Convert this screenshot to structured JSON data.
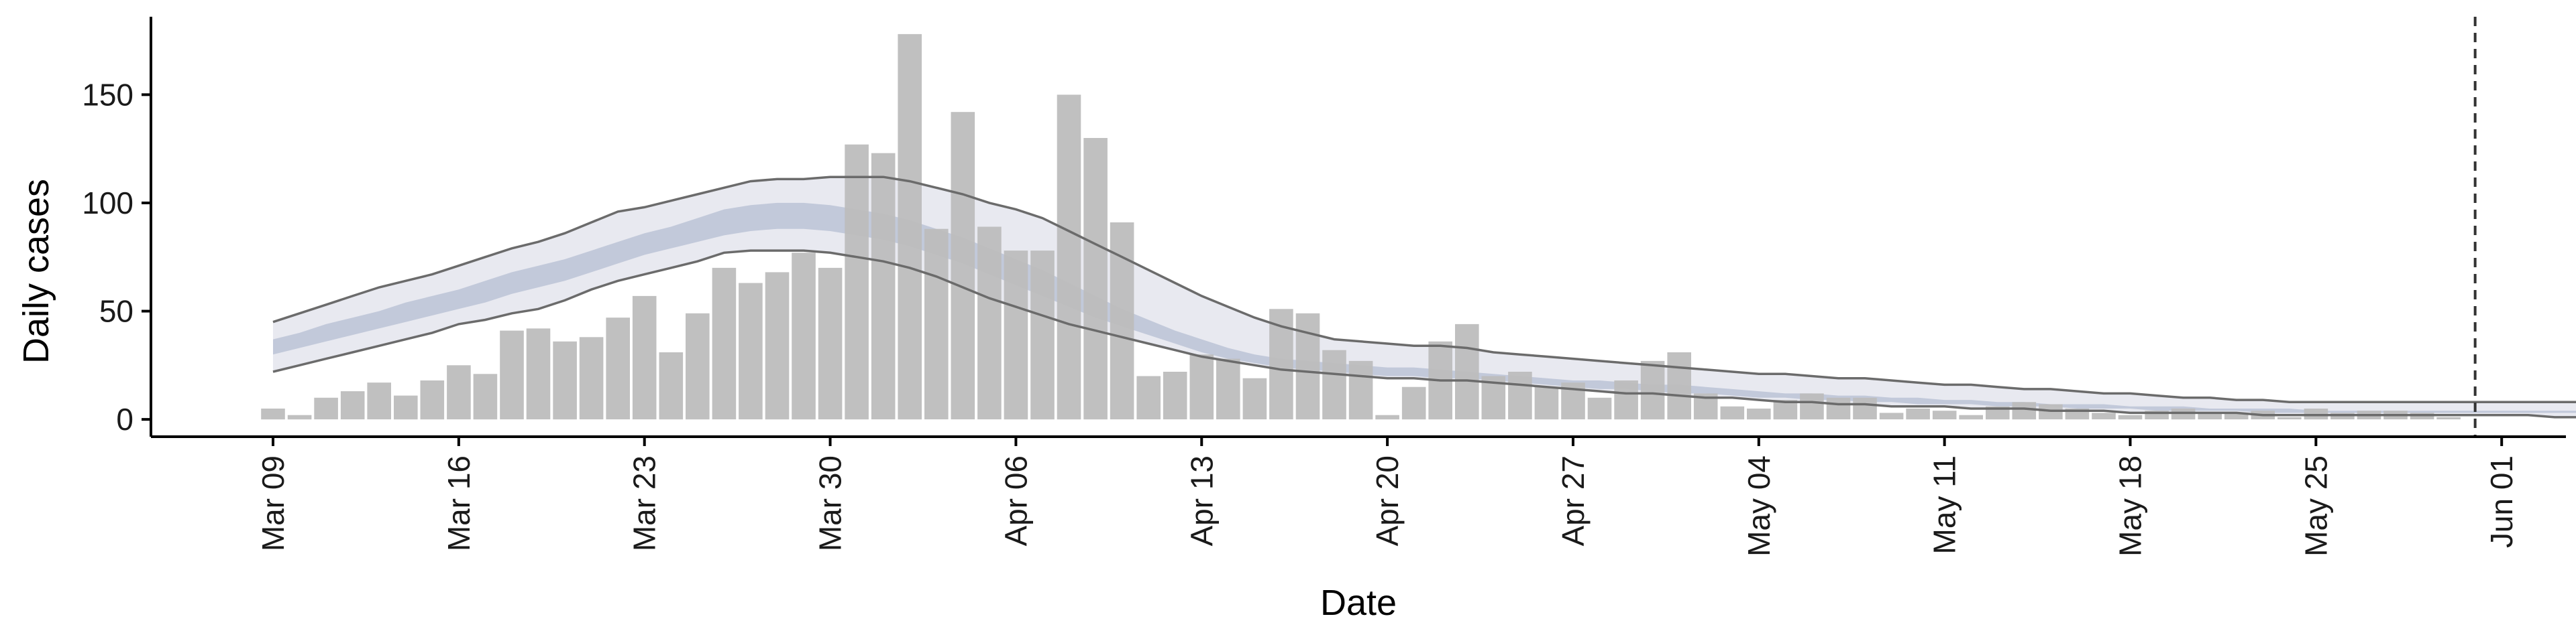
{
  "chart_data": {
    "type": "bar",
    "xlabel": "Date",
    "ylabel": "Daily cases",
    "x_tick_labels": [
      "Mar 09",
      "Mar 16",
      "Mar 23",
      "Mar 30",
      "Apr 06",
      "Apr 13",
      "Apr 20",
      "Apr 27",
      "May 04",
      "May 11",
      "May 18",
      "May 25",
      "Jun 01"
    ],
    "y_ticks": [
      0,
      50,
      100,
      150
    ],
    "ylim": [
      -8,
      186
    ],
    "start_date": "Mar 09",
    "bar_series": {
      "name": "",
      "color": "#bdbdbd",
      "dates": [
        "Mar 09",
        "Mar 10",
        "Mar 11",
        "Mar 12",
        "Mar 13",
        "Mar 14",
        "Mar 15",
        "Mar 16",
        "Mar 17",
        "Mar 18",
        "Mar 19",
        "Mar 20",
        "Mar 21",
        "Mar 22",
        "Mar 23",
        "Mar 24",
        "Mar 25",
        "Mar 26",
        "Mar 27",
        "Mar 28",
        "Mar 29",
        "Mar 30",
        "Mar 31",
        "Apr 01",
        "Apr 02",
        "Apr 03",
        "Apr 04",
        "Apr 05",
        "Apr 06",
        "Apr 07",
        "Apr 08",
        "Apr 09",
        "Apr 10",
        "Apr 11",
        "Apr 12",
        "Apr 13",
        "Apr 14",
        "Apr 15",
        "Apr 16",
        "Apr 17",
        "Apr 18",
        "Apr 19",
        "Apr 20",
        "Apr 21",
        "Apr 22",
        "Apr 23",
        "Apr 24",
        "Apr 25",
        "Apr 26",
        "Apr 27",
        "Apr 28",
        "Apr 29",
        "Apr 30",
        "May 01",
        "May 02",
        "May 03",
        "May 04",
        "May 05",
        "May 06",
        "May 07",
        "May 08",
        "May 09",
        "May 10",
        "May 11",
        "May 12",
        "May 13",
        "May 14",
        "May 15",
        "May 16",
        "May 17",
        "May 18",
        "May 19",
        "May 20",
        "May 21",
        "May 22",
        "May 23",
        "May 24",
        "May 25",
        "May 26",
        "May 27",
        "May 28",
        "May 29",
        "May 30"
      ],
      "values": [
        5,
        2,
        10,
        13,
        17,
        11,
        18,
        25,
        21,
        41,
        42,
        36,
        38,
        47,
        57,
        31,
        49,
        70,
        63,
        68,
        77,
        70,
        127,
        123,
        178,
        88,
        142,
        89,
        78,
        78,
        150,
        130,
        91,
        20,
        22,
        30,
        28,
        19,
        51,
        49,
        32,
        27,
        2,
        15,
        36,
        44,
        20,
        22,
        15,
        17,
        10,
        18,
        27,
        31,
        12,
        6,
        5,
        9,
        12,
        10,
        10,
        3,
        5,
        4,
        2,
        6,
        8,
        7,
        5,
        3,
        2,
        4,
        5,
        3,
        3,
        4,
        1,
        5,
        3,
        4,
        4,
        3,
        1
      ]
    },
    "forecast_band": {
      "start_date": "Mar 09",
      "outer_upper": [
        45,
        49,
        53,
        57,
        61,
        64,
        67,
        71,
        75,
        79,
        82,
        86,
        91,
        96,
        98,
        101,
        104,
        107,
        110,
        111,
        111,
        112,
        112,
        112,
        110,
        107,
        104,
        100,
        97,
        93,
        87,
        81,
        75,
        69,
        63,
        57,
        52,
        47,
        43,
        40,
        37,
        36,
        35,
        34,
        34,
        33,
        31,
        30,
        29,
        28,
        27,
        26,
        25,
        24,
        23,
        22,
        21,
        21,
        20,
        19,
        19,
        18,
        17,
        16,
        16,
        15,
        14,
        14,
        13,
        12,
        12,
        11,
        10,
        10,
        9,
        9,
        8,
        8,
        8,
        8,
        8,
        8,
        8,
        8,
        8,
        8,
        8,
        8,
        8,
        8,
        8,
        8,
        9,
        9,
        10,
        11,
        12
      ],
      "outer_lower": [
        22,
        25,
        28,
        31,
        34,
        37,
        40,
        44,
        46,
        49,
        51,
        55,
        60,
        64,
        67,
        70,
        73,
        77,
        78,
        78,
        78,
        77,
        75,
        73,
        70,
        66,
        61,
        56,
        52,
        48,
        44,
        41,
        38,
        35,
        32,
        29,
        27,
        25,
        23,
        22,
        21,
        20,
        19,
        19,
        18,
        18,
        17,
        16,
        15,
        14,
        13,
        12,
        12,
        11,
        10,
        10,
        9,
        8,
        8,
        7,
        7,
        6,
        6,
        6,
        5,
        5,
        5,
        4,
        4,
        4,
        3,
        3,
        3,
        3,
        3,
        2,
        2,
        2,
        2,
        2,
        2,
        2,
        2,
        2,
        2,
        2,
        1,
        1,
        1,
        1,
        1,
        1,
        1,
        1,
        1,
        1,
        1
      ],
      "inner_upper": [
        37,
        40,
        44,
        47,
        50,
        54,
        57,
        60,
        64,
        68,
        71,
        74,
        78,
        82,
        86,
        89,
        93,
        97,
        99,
        100,
        100,
        99,
        97,
        95,
        92,
        88,
        84,
        79,
        74,
        69,
        63,
        57,
        51,
        46,
        41,
        37,
        33,
        30,
        28,
        27,
        26,
        25,
        24,
        24,
        23,
        22,
        21,
        20,
        19,
        18,
        18,
        17,
        16,
        16,
        15,
        14,
        13,
        12,
        12,
        11,
        11,
        10,
        10,
        9,
        9,
        8,
        8,
        7,
        7,
        7,
        6,
        6,
        6,
        5,
        5,
        5,
        5,
        4,
        4,
        4,
        4,
        4,
        4,
        4,
        4,
        4,
        4,
        4,
        4,
        4,
        5,
        5,
        5,
        5,
        6,
        6,
        7
      ],
      "inner_lower": [
        30,
        33,
        36,
        39,
        42,
        45,
        48,
        51,
        54,
        58,
        61,
        64,
        68,
        72,
        76,
        79,
        82,
        85,
        87,
        88,
        88,
        87,
        85,
        83,
        80,
        76,
        72,
        67,
        62,
        57,
        52,
        47,
        43,
        39,
        35,
        31,
        28,
        26,
        24,
        23,
        22,
        21,
        20,
        20,
        19,
        19,
        18,
        17,
        16,
        15,
        14,
        14,
        13,
        12,
        12,
        11,
        10,
        10,
        9,
        9,
        8,
        8,
        7,
        7,
        7,
        6,
        6,
        6,
        5,
        5,
        5,
        4,
        4,
        4,
        4,
        3,
        3,
        3,
        3,
        3,
        3,
        3,
        3,
        3,
        3,
        3,
        3,
        3,
        3,
        3,
        3,
        3,
        3,
        3,
        3,
        3,
        3
      ]
    },
    "date_marker": "May 31",
    "colors": {
      "bars": "#bdbdbd",
      "outer_band": "#e8e9f0",
      "inner_band": "#c2c9da",
      "band_edge": "#6b6b6b",
      "marker": "#333333",
      "axis": "#000000"
    },
    "grid": false,
    "legend": "none"
  }
}
